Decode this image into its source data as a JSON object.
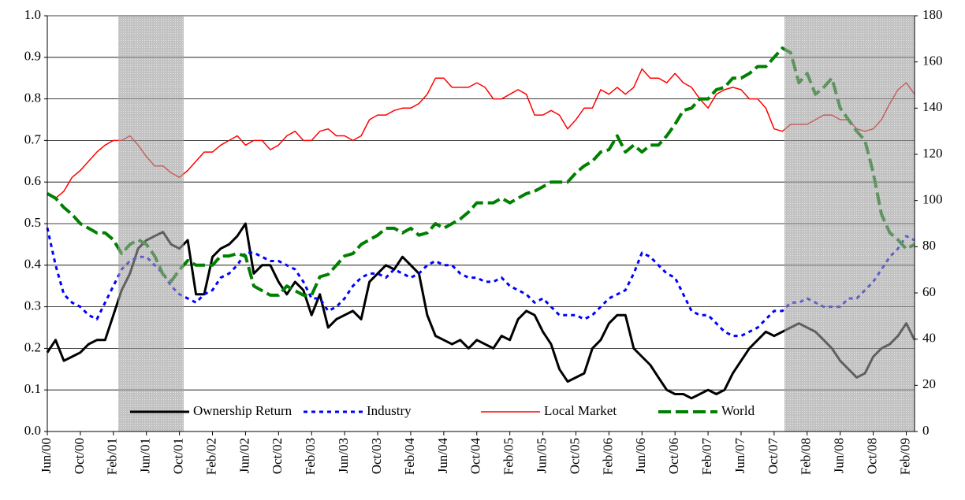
{
  "chart_data": {
    "type": "line",
    "categories": [
      "Jun/00",
      null,
      null,
      null,
      "Oct/00",
      null,
      null,
      null,
      "Feb/01",
      null,
      null,
      null,
      "Jun/01",
      null,
      null,
      null,
      "Oct/01",
      null,
      null,
      null,
      "Feb/02",
      null,
      null,
      null,
      "Jun/02",
      null,
      null,
      null,
      "Oct/02",
      null,
      null,
      null,
      "Feb/03",
      null,
      null,
      null,
      "Jun/03",
      null,
      null,
      null,
      "Oct/03",
      null,
      null,
      null,
      "Feb/04",
      null,
      null,
      null,
      "Jun/04",
      null,
      null,
      null,
      "Oct/04",
      null,
      null,
      null,
      "Feb/05",
      null,
      null,
      null,
      "Jun/05",
      null,
      null,
      null,
      "Oct/05",
      null,
      null,
      null,
      "Feb/06",
      null,
      null,
      null,
      "Jun/06",
      null,
      null,
      null,
      "Oct/06",
      null,
      null,
      null,
      "Feb/07",
      null,
      null,
      null,
      "Jun/07",
      null,
      null,
      null,
      "Oct/07",
      null,
      null,
      null,
      "Feb/08",
      null,
      null,
      null,
      "Jun/08",
      null,
      null,
      null,
      "Oct/08",
      null,
      null,
      null,
      "Feb/09",
      null
    ],
    "series": [
      {
        "name": "Ownership Return",
        "color": "#000000",
        "axis": "y",
        "values": [
          0.19,
          0.22,
          0.17,
          0.18,
          0.19,
          0.21,
          0.22,
          0.22,
          0.28,
          0.34,
          0.38,
          0.44,
          0.46,
          0.47,
          0.48,
          0.45,
          0.44,
          0.46,
          0.33,
          0.33,
          0.42,
          0.44,
          0.45,
          0.47,
          0.5,
          0.38,
          0.4,
          0.4,
          0.36,
          0.33,
          0.36,
          0.34,
          0.28,
          0.33,
          0.25,
          0.27,
          0.28,
          0.29,
          0.27,
          0.36,
          0.38,
          0.4,
          0.39,
          0.42,
          0.4,
          0.38,
          0.28,
          0.23,
          0.22,
          0.21,
          0.22,
          0.2,
          0.22,
          0.21,
          0.2,
          0.23,
          0.22,
          0.27,
          0.29,
          0.28,
          0.24,
          0.21,
          0.15,
          0.12,
          0.13,
          0.14,
          0.2,
          0.22,
          0.26,
          0.28,
          0.28,
          0.2,
          0.18,
          0.16,
          0.13,
          0.1,
          0.09,
          0.09,
          0.08,
          0.09,
          0.1,
          0.09,
          0.1,
          0.14,
          0.17,
          0.2,
          0.22,
          0.24,
          0.23,
          0.24,
          0.25,
          0.26,
          0.25,
          0.24,
          0.22,
          0.2,
          0.17,
          0.15,
          0.13,
          0.14,
          0.18,
          0.2,
          0.21,
          0.23,
          0.26,
          0.22
        ]
      },
      {
        "name": "Industry",
        "color": "#0000ff",
        "axis": "y",
        "values": [
          0.49,
          0.4,
          0.33,
          0.31,
          0.3,
          0.28,
          0.27,
          0.31,
          0.35,
          0.39,
          0.41,
          0.42,
          0.42,
          0.4,
          0.38,
          0.35,
          0.33,
          0.32,
          0.31,
          0.33,
          0.34,
          0.37,
          0.38,
          0.4,
          0.43,
          0.43,
          0.42,
          0.41,
          0.41,
          0.4,
          0.39,
          0.36,
          0.32,
          0.32,
          0.29,
          0.3,
          0.32,
          0.35,
          0.37,
          0.38,
          0.38,
          0.37,
          0.39,
          0.38,
          0.37,
          0.38,
          0.4,
          0.41,
          0.4,
          0.4,
          0.38,
          0.37,
          0.37,
          0.36,
          0.36,
          0.37,
          0.35,
          0.34,
          0.33,
          0.31,
          0.32,
          0.3,
          0.28,
          0.28,
          0.28,
          0.27,
          0.28,
          0.3,
          0.32,
          0.33,
          0.34,
          0.38,
          0.43,
          0.42,
          0.4,
          0.38,
          0.37,
          0.33,
          0.29,
          0.28,
          0.28,
          0.26,
          0.24,
          0.23,
          0.23,
          0.24,
          0.25,
          0.27,
          0.29,
          0.29,
          0.31,
          0.31,
          0.32,
          0.31,
          0.3,
          0.3,
          0.3,
          0.32,
          0.32,
          0.34,
          0.36,
          0.39,
          0.42,
          0.44,
          0.47,
          0.46
        ]
      },
      {
        "name": "Local Market",
        "color": "#ff0000",
        "axis": "y2",
        "values": [
          103,
          101,
          104,
          110,
          113,
          117,
          121,
          124,
          126,
          126,
          128,
          124,
          119,
          115,
          115,
          112,
          110,
          113,
          117,
          121,
          121,
          124,
          126,
          128,
          124,
          126,
          126,
          122,
          124,
          128,
          130,
          126,
          126,
          130,
          131,
          128,
          128,
          126,
          128,
          135,
          137,
          137,
          139,
          140,
          140,
          142,
          146,
          153,
          153,
          149,
          149,
          149,
          151,
          149,
          144,
          144,
          146,
          148,
          146,
          137,
          137,
          139,
          137,
          131,
          135,
          140,
          140,
          148,
          146,
          149,
          146,
          149,
          157,
          153,
          153,
          151,
          155,
          151,
          149,
          144,
          140,
          146,
          148,
          149,
          148,
          144,
          144,
          140,
          131,
          130,
          133,
          133,
          133,
          135,
          137,
          137,
          135,
          135,
          131,
          130,
          131,
          135,
          142,
          148,
          151,
          146
        ]
      },
      {
        "name": "World",
        "color": "#008000",
        "axis": "y2",
        "values": [
          103,
          101,
          97,
          94,
          90,
          88,
          86,
          86,
          83,
          77,
          81,
          83,
          81,
          76,
          68,
          65,
          70,
          74,
          72,
          72,
          72,
          76,
          76,
          77,
          76,
          63,
          61,
          59,
          59,
          63,
          61,
          59,
          59,
          67,
          68,
          72,
          76,
          77,
          81,
          83,
          85,
          88,
          88,
          86,
          88,
          85,
          86,
          90,
          88,
          90,
          92,
          95,
          99,
          99,
          99,
          101,
          99,
          101,
          103,
          104,
          106,
          108,
          108,
          108,
          112,
          115,
          117,
          121,
          122,
          128,
          121,
          124,
          121,
          124,
          124,
          128,
          133,
          139,
          140,
          144,
          144,
          148,
          149,
          153,
          153,
          155,
          158,
          158,
          162,
          166,
          164,
          151,
          155,
          146,
          149,
          153,
          140,
          135,
          130,
          126,
          112,
          94,
          86,
          83,
          79,
          81
        ]
      }
    ],
    "ylim": [
      0,
      1
    ],
    "yticks": [
      {
        "value": 0,
        "label": "0.0"
      },
      0.1,
      0.2,
      0.3,
      0.4,
      0.5,
      0.6,
      0.7,
      0.8,
      0.9,
      {
        "value": 1,
        "label": "1.0"
      }
    ],
    "y2lim": [
      0,
      180
    ],
    "y2ticks": [
      0,
      20,
      40,
      60,
      80,
      100,
      120,
      140,
      160,
      180
    ],
    "grid": true,
    "legend": "bottom"
  }
}
